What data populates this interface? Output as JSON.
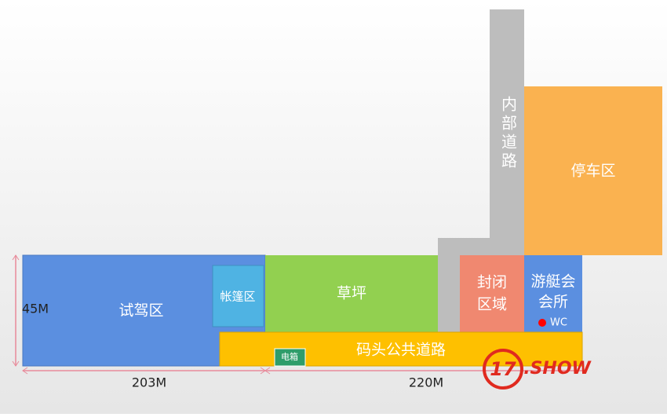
{
  "roads": {
    "inner": "内部道路",
    "pier": "码头公共道路"
  },
  "zones": {
    "parking": "停车区",
    "test_drive": "试驾区",
    "tent": "帐篷区",
    "lawn": "草坪",
    "closed": {
      "lines": [
        "封闭",
        "区域"
      ]
    },
    "yacht_club": {
      "lines": [
        "游艇会",
        "会所"
      ],
      "wc": "WC"
    },
    "power_box": "电箱"
  },
  "dimensions": {
    "height": "45M",
    "width_left": "203M",
    "width_right": "220M"
  },
  "logo": {
    "number": "17",
    "text": ".SHOW"
  }
}
